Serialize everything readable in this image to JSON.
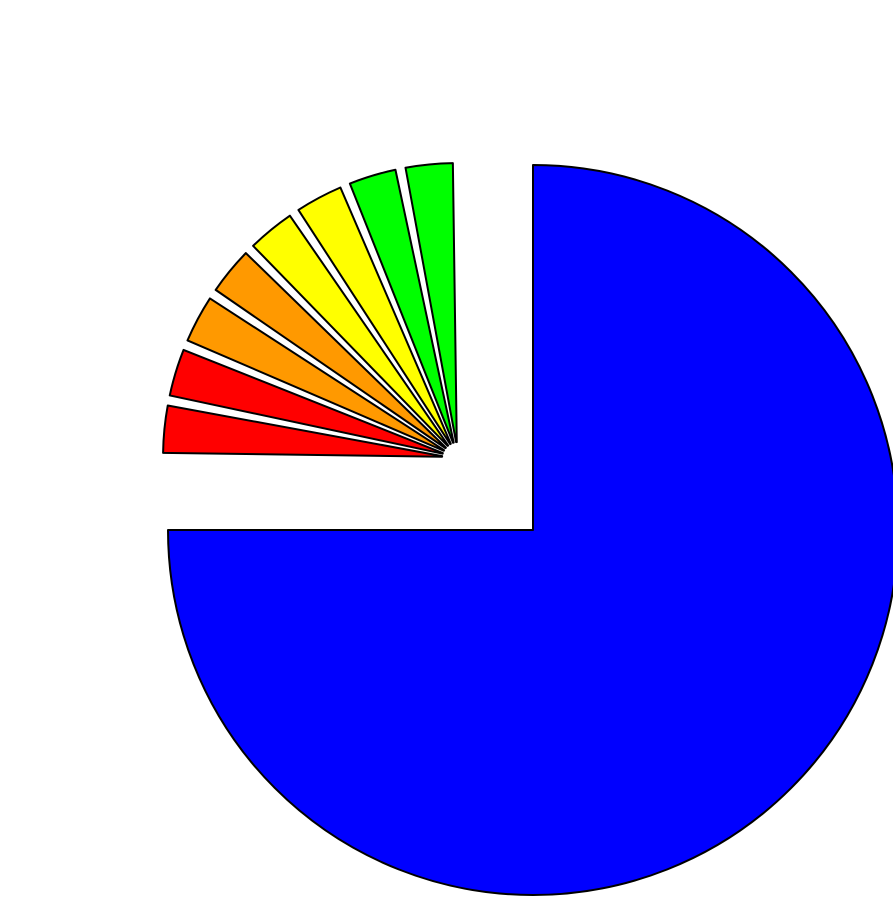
{
  "chart_data": {
    "type": "pie",
    "title": "",
    "exploded": true,
    "start": "12 o'clock",
    "direction": "clockwise",
    "slices": [
      {
        "value": 75.0,
        "color": "#0000ff"
      },
      {
        "value": 3.125,
        "color": "#ff0000"
      },
      {
        "value": 3.125,
        "color": "#ff0000"
      },
      {
        "value": 3.125,
        "color": "#ff9900"
      },
      {
        "value": 3.125,
        "color": "#ff9900"
      },
      {
        "value": 3.125,
        "color": "#ffff00"
      },
      {
        "value": 3.125,
        "color": "#ffff00"
      },
      {
        "value": 3.125,
        "color": "#00ff00"
      },
      {
        "value": 3.125,
        "color": "#00ff00"
      }
    ]
  }
}
